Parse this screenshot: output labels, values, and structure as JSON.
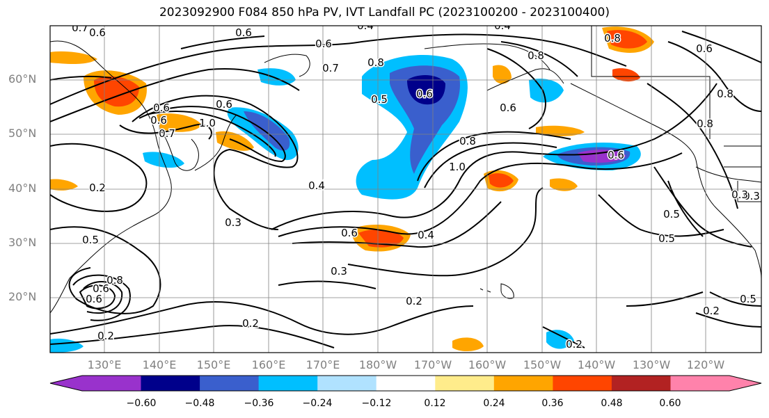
{
  "title": "2023092900 F084 850 hPa PV, IVT Landfall PC (2023100200 - 2023100400)",
  "colors": {
    "neg_060": "#9932cc",
    "neg_048": "#00008b",
    "neg_036": "#3a5fcd",
    "neg_024": "#00bfff",
    "neg_012": "#b0e2ff",
    "zero": "#ffffff",
    "pos_012": "#ffec8b",
    "pos_024": "#ffa500",
    "pos_036": "#ff4500",
    "pos_048": "#b22222",
    "pos_060": "#ff82ab",
    "contour": "#000000",
    "grid": "#808080",
    "coast": "#000000"
  },
  "lat_labels": [
    "60°N",
    "50°N",
    "40°N",
    "30°N",
    "20°N"
  ],
  "lon_labels": [
    "130°E",
    "140°E",
    "150°E",
    "160°E",
    "170°E",
    "180°W",
    "170°W",
    "160°W",
    "150°W",
    "140°W",
    "130°W",
    "120°W"
  ],
  "colorbar": {
    "ticks": [
      "−0.60",
      "−0.48",
      "−0.36",
      "−0.24",
      "−0.12",
      "0.12",
      "0.24",
      "0.36",
      "0.48",
      "0.60"
    ]
  },
  "contour_labels": [
    "0.6",
    "0.7",
    "0.6",
    "0.4",
    "0.4",
    "0.6",
    "0.7",
    "0.8",
    "0.5",
    "0.8",
    "0.6",
    "0.6",
    "0.6",
    "1.0",
    "0.7",
    "0.6",
    "0.6",
    "1.0",
    "0.8",
    "0.2",
    "0.3",
    "0.4",
    "0.4",
    "0.5",
    "0.3",
    "0.6",
    "0.5",
    "0.3",
    "0.2",
    "0.2",
    "0.2",
    "0.6",
    "0.8",
    "0.6",
    "0.3",
    "0.6",
    "0.5",
    "0.5",
    "0.2",
    "0.2",
    "0.8",
    "0.8",
    "0.6",
    "0.8"
  ]
}
